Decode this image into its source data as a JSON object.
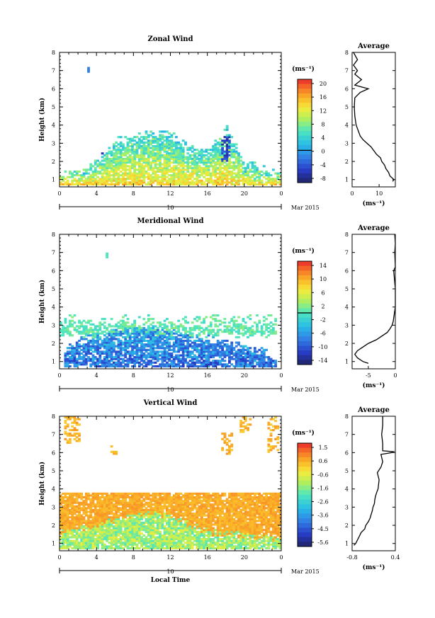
{
  "chart_data": [
    {
      "type": "heatmap",
      "title": "Zonal Wind",
      "ylabel": "Height (km)",
      "xlabel": "",
      "x_ticks": [
        "0",
        "4",
        "8",
        "12",
        "16",
        "20",
        "0"
      ],
      "y_ticks": [
        "1",
        "2",
        "3",
        "4",
        "5",
        "6",
        "7",
        "8"
      ],
      "xlim": [
        0,
        24
      ],
      "ylim": [
        0.6,
        8
      ],
      "date_day": "10",
      "date_month": "Mar 2015",
      "colorbar_unit": "(ms⁻¹)",
      "colorbar_ticks": [
        "20",
        "16",
        "12",
        "8",
        "4",
        "0",
        "-4",
        "-8"
      ],
      "colorbar_range": [
        -10,
        22
      ],
      "zero_line_at": 0,
      "field": {
        "cloud_top_by_hour": [
          [
            0,
            1.1
          ],
          [
            2,
            1.3
          ],
          [
            4,
            2.0
          ],
          [
            6,
            2.9
          ],
          [
            8,
            3.2
          ],
          [
            10,
            3.6
          ],
          [
            12,
            3.3
          ],
          [
            14,
            2.6
          ],
          [
            16,
            2.5
          ],
          [
            18,
            3.6
          ],
          [
            20,
            1.8
          ],
          [
            22,
            1.4
          ],
          [
            24,
            1.2
          ]
        ],
        "low_value": 14,
        "high_value": 4,
        "negative_patches": [
          [
            3.2,
            4.6,
            2.4,
            3.4
          ],
          [
            17.3,
            18.4,
            2.0,
            3.6
          ]
        ],
        "isolated_points": [
          [
            3,
            7.0
          ]
        ]
      },
      "profile": {
        "title": "Average",
        "unit_label": "(ms⁻¹)",
        "x_ticks": [
          "0",
          "10"
        ],
        "xlim": [
          0,
          16
        ],
        "height": [
          0.9,
          1.0,
          1.2,
          1.4,
          1.6,
          1.8,
          2.0,
          2.2,
          2.4,
          2.6,
          2.8,
          3.0,
          3.2,
          3.4,
          3.6,
          3.8,
          4.0,
          4.5,
          5.0,
          5.5,
          5.8,
          6.0,
          6.2,
          6.5,
          6.8,
          7.0,
          7.3,
          7.6,
          8.0
        ],
        "value": [
          15,
          15.5,
          14,
          13.5,
          12.5,
          12,
          11,
          10.5,
          9,
          8,
          7,
          5.5,
          4,
          3,
          2.5,
          2,
          1.5,
          1,
          0.8,
          1,
          3,
          6,
          1,
          3.5,
          1,
          2,
          0.5,
          2,
          0.5
        ]
      }
    },
    {
      "type": "heatmap",
      "title": "Meridional Wind",
      "ylabel": "Height (km)",
      "xlabel": "",
      "x_ticks": [
        "0",
        "4",
        "8",
        "12",
        "16",
        "20",
        "0"
      ],
      "y_ticks": [
        "1",
        "2",
        "3",
        "4",
        "5",
        "6",
        "7",
        "8"
      ],
      "xlim": [
        0,
        24
      ],
      "ylim": [
        0.6,
        8
      ],
      "date_day": "10",
      "date_month": "Mar 2015",
      "colorbar_unit": "(ms⁻¹)",
      "colorbar_ticks": [
        "14",
        "10",
        "6",
        "2",
        "-2",
        "-6",
        "-10",
        "-14"
      ],
      "colorbar_range": [
        -16,
        16
      ],
      "zero_line_at": 0,
      "field": {
        "top_band": [
          2.6,
          3.6
        ],
        "top_band_value": 0.5,
        "low_value": -9,
        "low_top_by_hour": [
          [
            0,
            1.2
          ],
          [
            1,
            1.8
          ],
          [
            3,
            2.3
          ],
          [
            6,
            2.6
          ],
          [
            9,
            2.8
          ],
          [
            12,
            2.5
          ],
          [
            15,
            2.3
          ],
          [
            18,
            2.0
          ],
          [
            21,
            1.6
          ],
          [
            24,
            1.2
          ]
        ],
        "isolated_points": [
          [
            5,
            6.8
          ]
        ]
      },
      "profile": {
        "title": "Average",
        "unit_label": "(ms⁻¹)",
        "x_ticks": [
          "-5",
          "0"
        ],
        "xlim": [
          -8,
          0
        ],
        "height": [
          0.9,
          1.0,
          1.2,
          1.4,
          1.6,
          1.8,
          2.0,
          2.2,
          2.4,
          2.6,
          2.8,
          3.0,
          3.2,
          3.4,
          3.6,
          3.8,
          4.0,
          5.0,
          6.0,
          6.2,
          7.0,
          7.5,
          8.0
        ],
        "value": [
          -5,
          -6,
          -7,
          -7.5,
          -7,
          -6,
          -5,
          -3.5,
          -2.5,
          -1.5,
          -1,
          -0.6,
          -0.4,
          -0.3,
          -0.2,
          -0.1,
          0,
          0,
          -0.3,
          0,
          -0.1,
          0,
          -0.1
        ]
      }
    },
    {
      "type": "heatmap",
      "title": "Vertical Wind",
      "ylabel": "Height (km)",
      "xlabel": "Local Time",
      "x_ticks": [
        "0",
        "4",
        "8",
        "12",
        "16",
        "20",
        "0"
      ],
      "y_ticks": [
        "1",
        "2",
        "3",
        "4",
        "5",
        "6",
        "7",
        "8"
      ],
      "xlim": [
        0,
        24
      ],
      "ylim": [
        0.6,
        8
      ],
      "date_day": "10",
      "date_month": "Mar 2015",
      "colorbar_unit": "(ms⁻¹)",
      "colorbar_ticks": [
        "1.5",
        "0.6",
        "-0.6",
        "-1.6",
        "-2.6",
        "-3.6",
        "-4.5",
        "-5.6"
      ],
      "colorbar_range": [
        -6.2,
        2.1
      ],
      "field": {
        "dense_top": 3.8,
        "dense_value": 0.7,
        "low_value": -1.2,
        "low_top_by_hour": [
          [
            0,
            1.6
          ],
          [
            4,
            2.0
          ],
          [
            8,
            2.6
          ],
          [
            10,
            2.7
          ],
          [
            12,
            2.4
          ],
          [
            14,
            2.0
          ],
          [
            16,
            1.6
          ],
          [
            20,
            1.4
          ],
          [
            24,
            1.2
          ]
        ],
        "scatter_regions": [
          [
            0.5,
            2.2,
            6.4,
            7.9
          ],
          [
            5.5,
            6.2,
            5.8,
            6.3
          ],
          [
            17.5,
            18.5,
            5.8,
            7.0
          ],
          [
            19.5,
            20.5,
            7.0,
            7.9
          ],
          [
            22.3,
            23.5,
            5.9,
            7.9
          ]
        ]
      },
      "profile": {
        "title": "Average",
        "unit_label": "(ms⁻¹)",
        "x_ticks": [
          "-0.8",
          "0.4"
        ],
        "xlim": [
          -0.8,
          0.4
        ],
        "height": [
          0.9,
          1.0,
          1.2,
          1.4,
          1.6,
          1.8,
          2.0,
          2.2,
          2.4,
          2.6,
          2.8,
          3.0,
          3.2,
          3.4,
          3.6,
          3.8,
          4.0,
          4.5,
          4.9,
          5.2,
          5.5,
          5.9,
          6.0,
          6.05,
          6.1,
          6.5,
          7.0,
          7.5,
          8.0
        ],
        "value": [
          -0.75,
          -0.7,
          -0.65,
          -0.6,
          -0.55,
          -0.45,
          -0.42,
          -0.35,
          -0.3,
          -0.27,
          -0.24,
          -0.22,
          -0.18,
          -0.17,
          -0.15,
          -0.12,
          -0.08,
          -0.05,
          -0.1,
          0.0,
          0.05,
          0.0,
          0.3,
          0.35,
          0.05,
          0.05,
          0.02,
          0.05,
          0.05
        ]
      }
    }
  ]
}
